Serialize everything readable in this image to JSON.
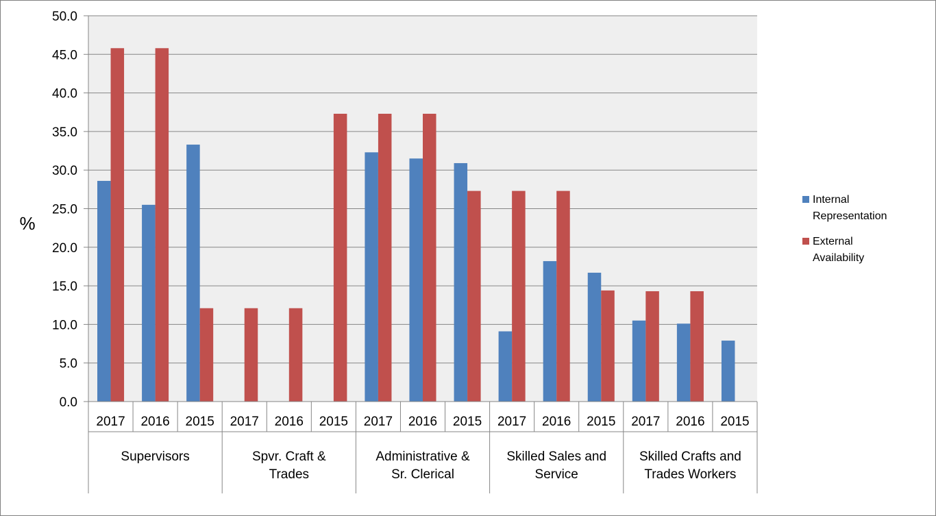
{
  "chart_data": {
    "type": "bar",
    "title": "",
    "xlabel": "",
    "ylabel": "%",
    "ylim": [
      0,
      50
    ],
    "y_ticks": [
      "0.0",
      "5.0",
      "10.0",
      "15.0",
      "20.0",
      "25.0",
      "30.0",
      "35.0",
      "40.0",
      "45.0",
      "50.0"
    ],
    "grid": true,
    "legend_position": "right",
    "groups": [
      {
        "label_lines": [
          "Supervisors"
        ],
        "years": [
          "2017",
          "2016",
          "2015"
        ]
      },
      {
        "label_lines": [
          "Spvr. Craft &",
          "Trades"
        ],
        "years": [
          "2017",
          "2016",
          "2015"
        ]
      },
      {
        "label_lines": [
          "Administrative &",
          "Sr. Clerical"
        ],
        "years": [
          "2017",
          "2016",
          "2015"
        ]
      },
      {
        "label_lines": [
          "Skilled Sales and",
          "Service"
        ],
        "years": [
          "2017",
          "2016",
          "2015"
        ]
      },
      {
        "label_lines": [
          "Skilled Crafts and",
          "Trades Workers"
        ],
        "years": [
          "2017",
          "2016",
          "2015"
        ]
      }
    ],
    "series": [
      {
        "name": "Internal Representation",
        "legend_lines": [
          "Internal",
          "Representation"
        ],
        "color": "#4F81BD",
        "values": [
          28.6,
          25.5,
          33.3,
          0,
          0,
          0,
          32.3,
          31.5,
          30.9,
          9.1,
          18.2,
          16.7,
          10.5,
          10.1,
          7.9
        ]
      },
      {
        "name": "External Availability",
        "legend_lines": [
          "External",
          "Availability"
        ],
        "color": "#C0504D",
        "values": [
          45.8,
          45.8,
          12.1,
          12.1,
          12.1,
          37.3,
          37.3,
          37.3,
          27.3,
          27.3,
          27.3,
          14.4,
          14.3,
          14.3,
          0
        ]
      }
    ],
    "plot_background": "#EFEFEF",
    "grid_color": "#868686"
  }
}
